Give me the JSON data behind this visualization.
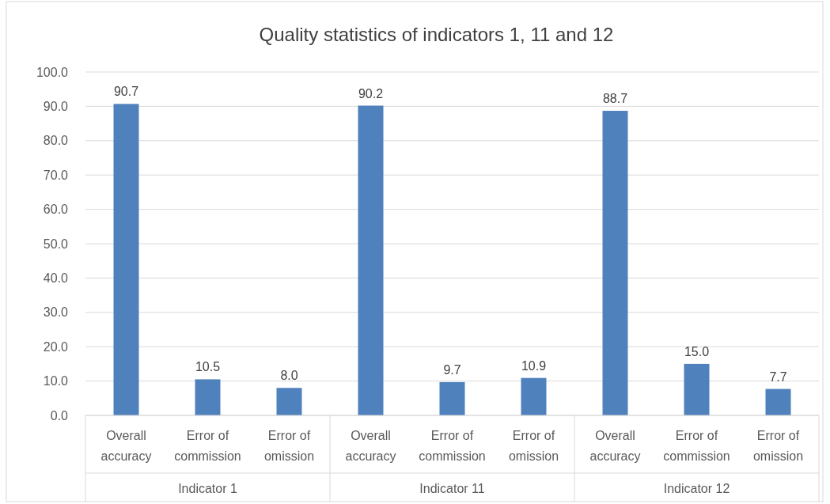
{
  "chart_data": {
    "type": "bar",
    "title": "Quality statistics of indicators 1, 11 and 12",
    "categories": [
      "Indicator 1",
      "Indicator 11",
      "Indicator 12"
    ],
    "series": [
      {
        "name": "Overall accuracy",
        "color": "#4f81bd",
        "values": [
          90.7,
          90.2,
          88.7
        ],
        "value_labels": [
          "90.7",
          "90.2",
          "88.7"
        ]
      },
      {
        "name": "Error of commission",
        "color": "#4f81bd",
        "values": [
          10.5,
          9.7,
          15.0
        ],
        "value_labels": [
          "10.5",
          "9.7",
          "15.0"
        ]
      },
      {
        "name": "Error of omission",
        "color": "#4f81bd",
        "values": [
          8.0,
          10.9,
          7.7
        ],
        "value_labels": [
          "8.0",
          "10.9",
          "7.7"
        ]
      }
    ],
    "ylim": [
      0,
      100
    ],
    "yticks": [
      {
        "value": 0,
        "label": "0.0"
      },
      {
        "value": 10,
        "label": "10.0"
      },
      {
        "value": 20,
        "label": "20.0"
      },
      {
        "value": 30,
        "label": "30.0"
      },
      {
        "value": 40,
        "label": "40.0"
      },
      {
        "value": 50,
        "label": "50.0"
      },
      {
        "value": 60,
        "label": "60.0"
      },
      {
        "value": 70,
        "label": "70.0"
      },
      {
        "value": 80,
        "label": "80.0"
      },
      {
        "value": 90,
        "label": "90.0"
      },
      {
        "value": 100,
        "label": "100.0"
      }
    ],
    "grid": "y"
  }
}
